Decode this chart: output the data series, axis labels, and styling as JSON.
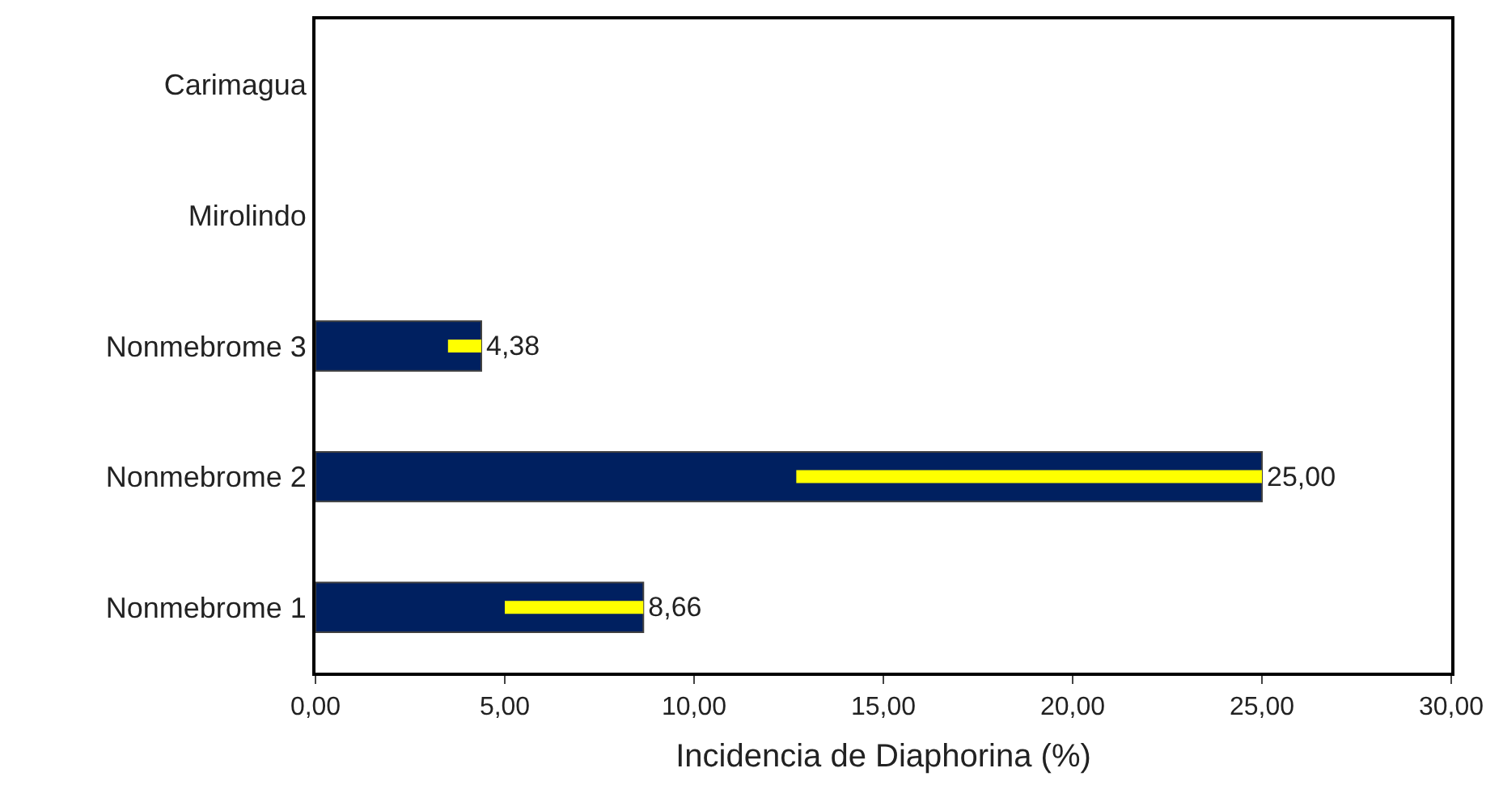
{
  "chart_data": {
    "type": "bar",
    "orientation": "horizontal",
    "xlabel": "Incidencia de Diaphorina (%)",
    "categories": [
      "Carimagua",
      "Mirolindo",
      "Nonmebrome 3",
      "Nonmebrome 2",
      "Nonmebrome 1"
    ],
    "values": [
      null,
      null,
      4.38,
      25.0,
      8.66
    ],
    "value_labels": [
      null,
      null,
      "4,38",
      "25,00",
      "8,66"
    ],
    "errors": [
      null,
      null,
      [
        3.5,
        4.38
      ],
      [
        12.7,
        25.0
      ],
      [
        5.0,
        8.66
      ]
    ],
    "color": "#002060",
    "xlim": [
      0,
      30
    ],
    "xticks": [
      {
        "value": 0,
        "label": "0,00"
      },
      {
        "value": 5,
        "label": "5,00"
      },
      {
        "value": 10,
        "label": "10,00"
      },
      {
        "value": 15,
        "label": "15,00"
      },
      {
        "value": 20,
        "label": "20,00"
      },
      {
        "value": 25,
        "label": "25,00"
      },
      {
        "value": 30,
        "label": "30,00"
      }
    ]
  }
}
